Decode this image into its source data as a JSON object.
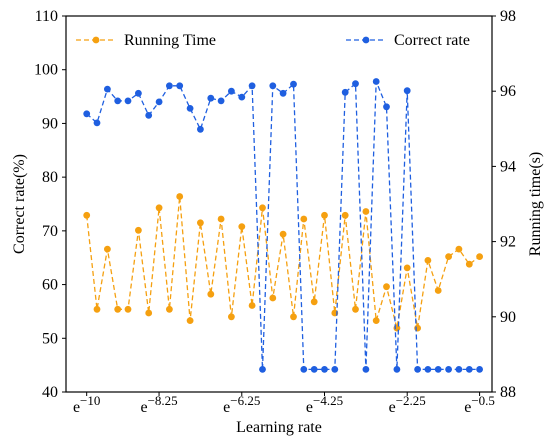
{
  "chart_data": {
    "type": "line",
    "xlabel": "Learning rate",
    "ylabel_left": "Correct rate(%)",
    "ylabel_right": "Running time(s)",
    "ylim_left": [
      40,
      110
    ],
    "ylim_right": [
      88,
      98
    ],
    "yticks_left": [
      40,
      50,
      60,
      70,
      80,
      90,
      100,
      110
    ],
    "yticks_right": [
      88,
      90,
      92,
      94,
      96,
      98
    ],
    "xlim": [
      -10.5,
      -0.2
    ],
    "xticks": [
      {
        "value": -10,
        "base": "e",
        "exp": "−10"
      },
      {
        "value": -8.25,
        "base": "e",
        "exp": "−8.25"
      },
      {
        "value": -6.25,
        "base": "e",
        "exp": "−6.25"
      },
      {
        "value": -4.25,
        "base": "e",
        "exp": "−4.25"
      },
      {
        "value": -2.25,
        "base": "e",
        "exp": "−2.25"
      },
      {
        "value": -0.5,
        "base": "e",
        "exp": "−0.5"
      }
    ],
    "legend": {
      "placement": "top"
    },
    "series": [
      {
        "name": "Running Time",
        "axis": "right",
        "color": "#f5a010",
        "x": [
          -10.0,
          -9.75,
          -9.5,
          -9.25,
          -9.0,
          -8.75,
          -8.5,
          -8.25,
          -8.0,
          -7.75,
          -7.5,
          -7.25,
          -7.0,
          -6.75,
          -6.5,
          -6.25,
          -6.0,
          -5.75,
          -5.5,
          -5.25,
          -5.0,
          -4.75,
          -4.5,
          -4.25,
          -4.0,
          -3.75,
          -3.5,
          -3.25,
          -3.0,
          -2.75,
          -2.5,
          -2.25,
          -2.0,
          -1.75,
          -1.5,
          -1.25,
          -1.0,
          -0.75,
          -0.5
        ],
        "y": [
          92.7,
          90.2,
          91.8,
          90.2,
          90.2,
          92.3,
          90.1,
          92.9,
          90.2,
          93.2,
          89.9,
          92.5,
          90.6,
          92.6,
          90.0,
          92.4,
          90.3,
          92.9,
          90.5,
          92.2,
          90.0,
          92.6,
          90.4,
          92.7,
          90.1,
          92.7,
          90.2,
          92.8,
          89.9,
          90.8,
          89.7,
          91.3,
          89.7,
          91.5,
          90.7,
          91.6,
          91.8,
          91.4,
          91.6
        ]
      },
      {
        "name": "Correct rate",
        "axis": "left",
        "color": "#1f5fe0",
        "x": [
          -10.0,
          -9.75,
          -9.5,
          -9.25,
          -9.0,
          -8.75,
          -8.5,
          -8.25,
          -8.0,
          -7.75,
          -7.5,
          -7.25,
          -7.0,
          -6.75,
          -6.5,
          -6.25,
          -6.0,
          -5.75,
          -5.5,
          -5.25,
          -5.0,
          -4.75,
          -4.5,
          -4.25,
          -4.0,
          -3.75,
          -3.5,
          -3.25,
          -3.0,
          -2.75,
          -2.5,
          -2.25,
          -2.0,
          -1.75,
          -1.5,
          -1.25,
          -1.0,
          -0.75,
          -0.5
        ],
        "y": [
          91.8,
          90.1,
          96.4,
          94.2,
          94.2,
          95.6,
          91.5,
          94.0,
          97.0,
          97.0,
          92.8,
          88.9,
          94.7,
          94.2,
          96.0,
          94.9,
          97.0,
          44.2,
          97.0,
          95.6,
          97.3,
          44.2,
          44.2,
          44.2,
          44.2,
          95.8,
          97.4,
          44.2,
          97.8,
          93.1,
          44.2,
          96.1,
          44.2,
          44.2,
          44.2,
          44.2,
          44.2,
          44.2,
          44.2
        ]
      }
    ]
  }
}
